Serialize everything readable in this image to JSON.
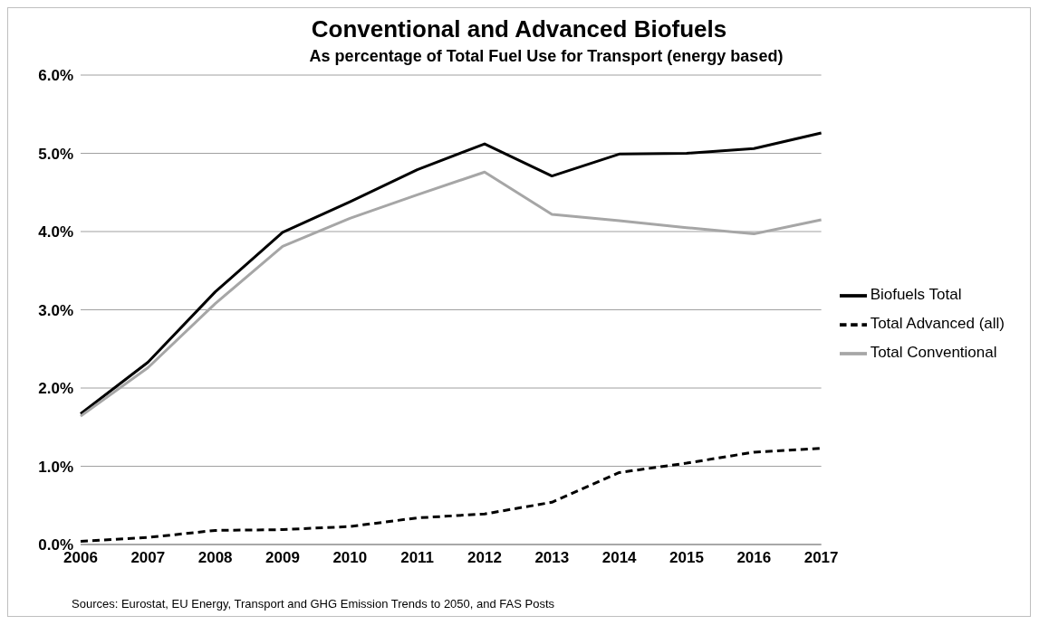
{
  "chart_data": {
    "type": "line",
    "title": "Conventional and Advanced Biofuels",
    "subtitle": "As percentage of Total Fuel Use for Transport (energy based)",
    "categories": [
      "2006",
      "2007",
      "2008",
      "2009",
      "2010",
      "2011",
      "2012",
      "2013",
      "2014",
      "2015",
      "2016",
      "2017"
    ],
    "series": [
      {
        "name": "Biofuels Total",
        "color": "#000000",
        "values": [
          1.67,
          2.33,
          3.23,
          3.99,
          4.38,
          4.79,
          5.12,
          4.71,
          4.99,
          5.0,
          5.06,
          5.26
        ]
      },
      {
        "name": "Total Conventional",
        "color": "#a6a6a6",
        "values": [
          1.64,
          2.26,
          3.08,
          3.81,
          4.17,
          4.47,
          4.76,
          4.22,
          4.14,
          4.05,
          3.97,
          4.15
        ]
      },
      {
        "name": "Total Advanced (all)",
        "color": "#000000",
        "line_style": "dashed",
        "values": [
          0.04,
          0.09,
          0.18,
          0.19,
          0.23,
          0.34,
          0.39,
          0.54,
          0.92,
          1.04,
          1.18,
          1.23
        ]
      }
    ],
    "ylim": [
      0,
      6
    ],
    "yticks": [
      {
        "value": 0,
        "label": "0.0%"
      },
      {
        "value": 1,
        "label": "1.0%"
      },
      {
        "value": 2,
        "label": "2.0%"
      },
      {
        "value": 3,
        "label": "3.0%"
      },
      {
        "value": 4,
        "label": "4.0%"
      },
      {
        "value": 5,
        "label": "5.0%"
      },
      {
        "value": 6,
        "label": "6.0%"
      }
    ],
    "grid": "y",
    "legend": "right",
    "marker": "none",
    "line_style": "solid",
    "annotations": [
      "Sources: Eurostat, EU Energy, Transport and GHG Emission Trends to 2050, and FAS Posts"
    ]
  }
}
